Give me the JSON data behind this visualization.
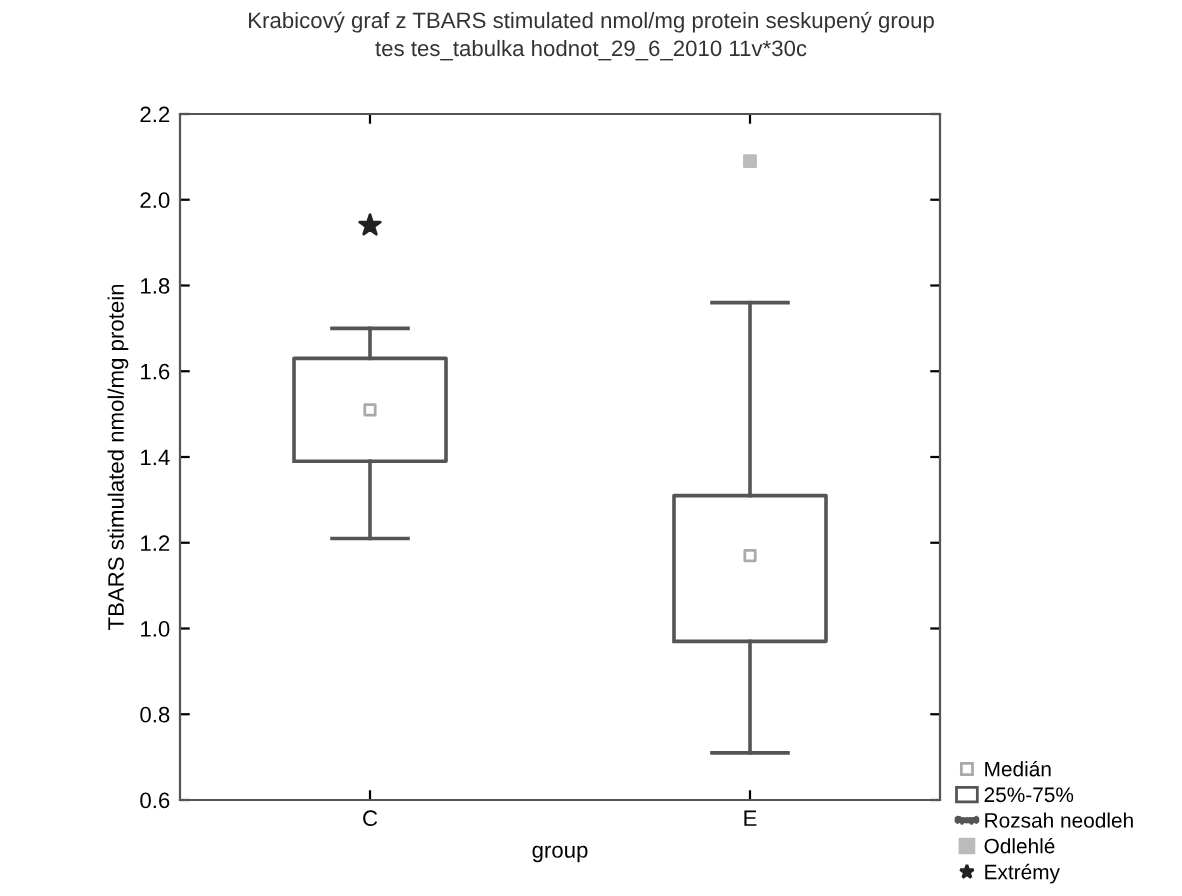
{
  "chart_data": {
    "type": "box",
    "title": "Krabicový graf z TBARS stimulated nmol/mg protein seskupený group",
    "subtitle": "tes tes_tabulka hodnot_29_6_2010 11v*30c",
    "xlabel": "group",
    "ylabel": "TBARS stimulated nmol/mg protein",
    "categories": [
      "C",
      "E"
    ],
    "boxes": [
      {
        "low": 1.21,
        "q1": 1.39,
        "median": 1.51,
        "q3": 1.63,
        "high": 1.7
      },
      {
        "low": 0.71,
        "q1": 0.97,
        "median": 1.17,
        "q3": 1.31,
        "high": 1.76
      }
    ],
    "color": "#555555",
    "series": [
      {
        "type": "scatter",
        "name": "Odlehlé",
        "x": [
          "E"
        ],
        "values": [
          2.09
        ],
        "marker": "square",
        "color": "#bbbbbb"
      },
      {
        "type": "scatter",
        "name": "Extrémy",
        "x": [
          "C"
        ],
        "values": [
          1.94
        ],
        "marker": "star",
        "color": "#222222"
      }
    ],
    "annotations": [
      "Medián",
      "25%-75%",
      "Rozsah neodleh"
    ],
    "ylim": [
      0.6,
      2.2
    ],
    "yticks": [
      0.6,
      0.8,
      {
        "value": 1.0,
        "label": "1.0"
      },
      1.2,
      1.4,
      1.6,
      1.8,
      {
        "value": 2.0,
        "label": "2.0"
      },
      2.2
    ],
    "grid": false,
    "legend": "bottom right"
  }
}
